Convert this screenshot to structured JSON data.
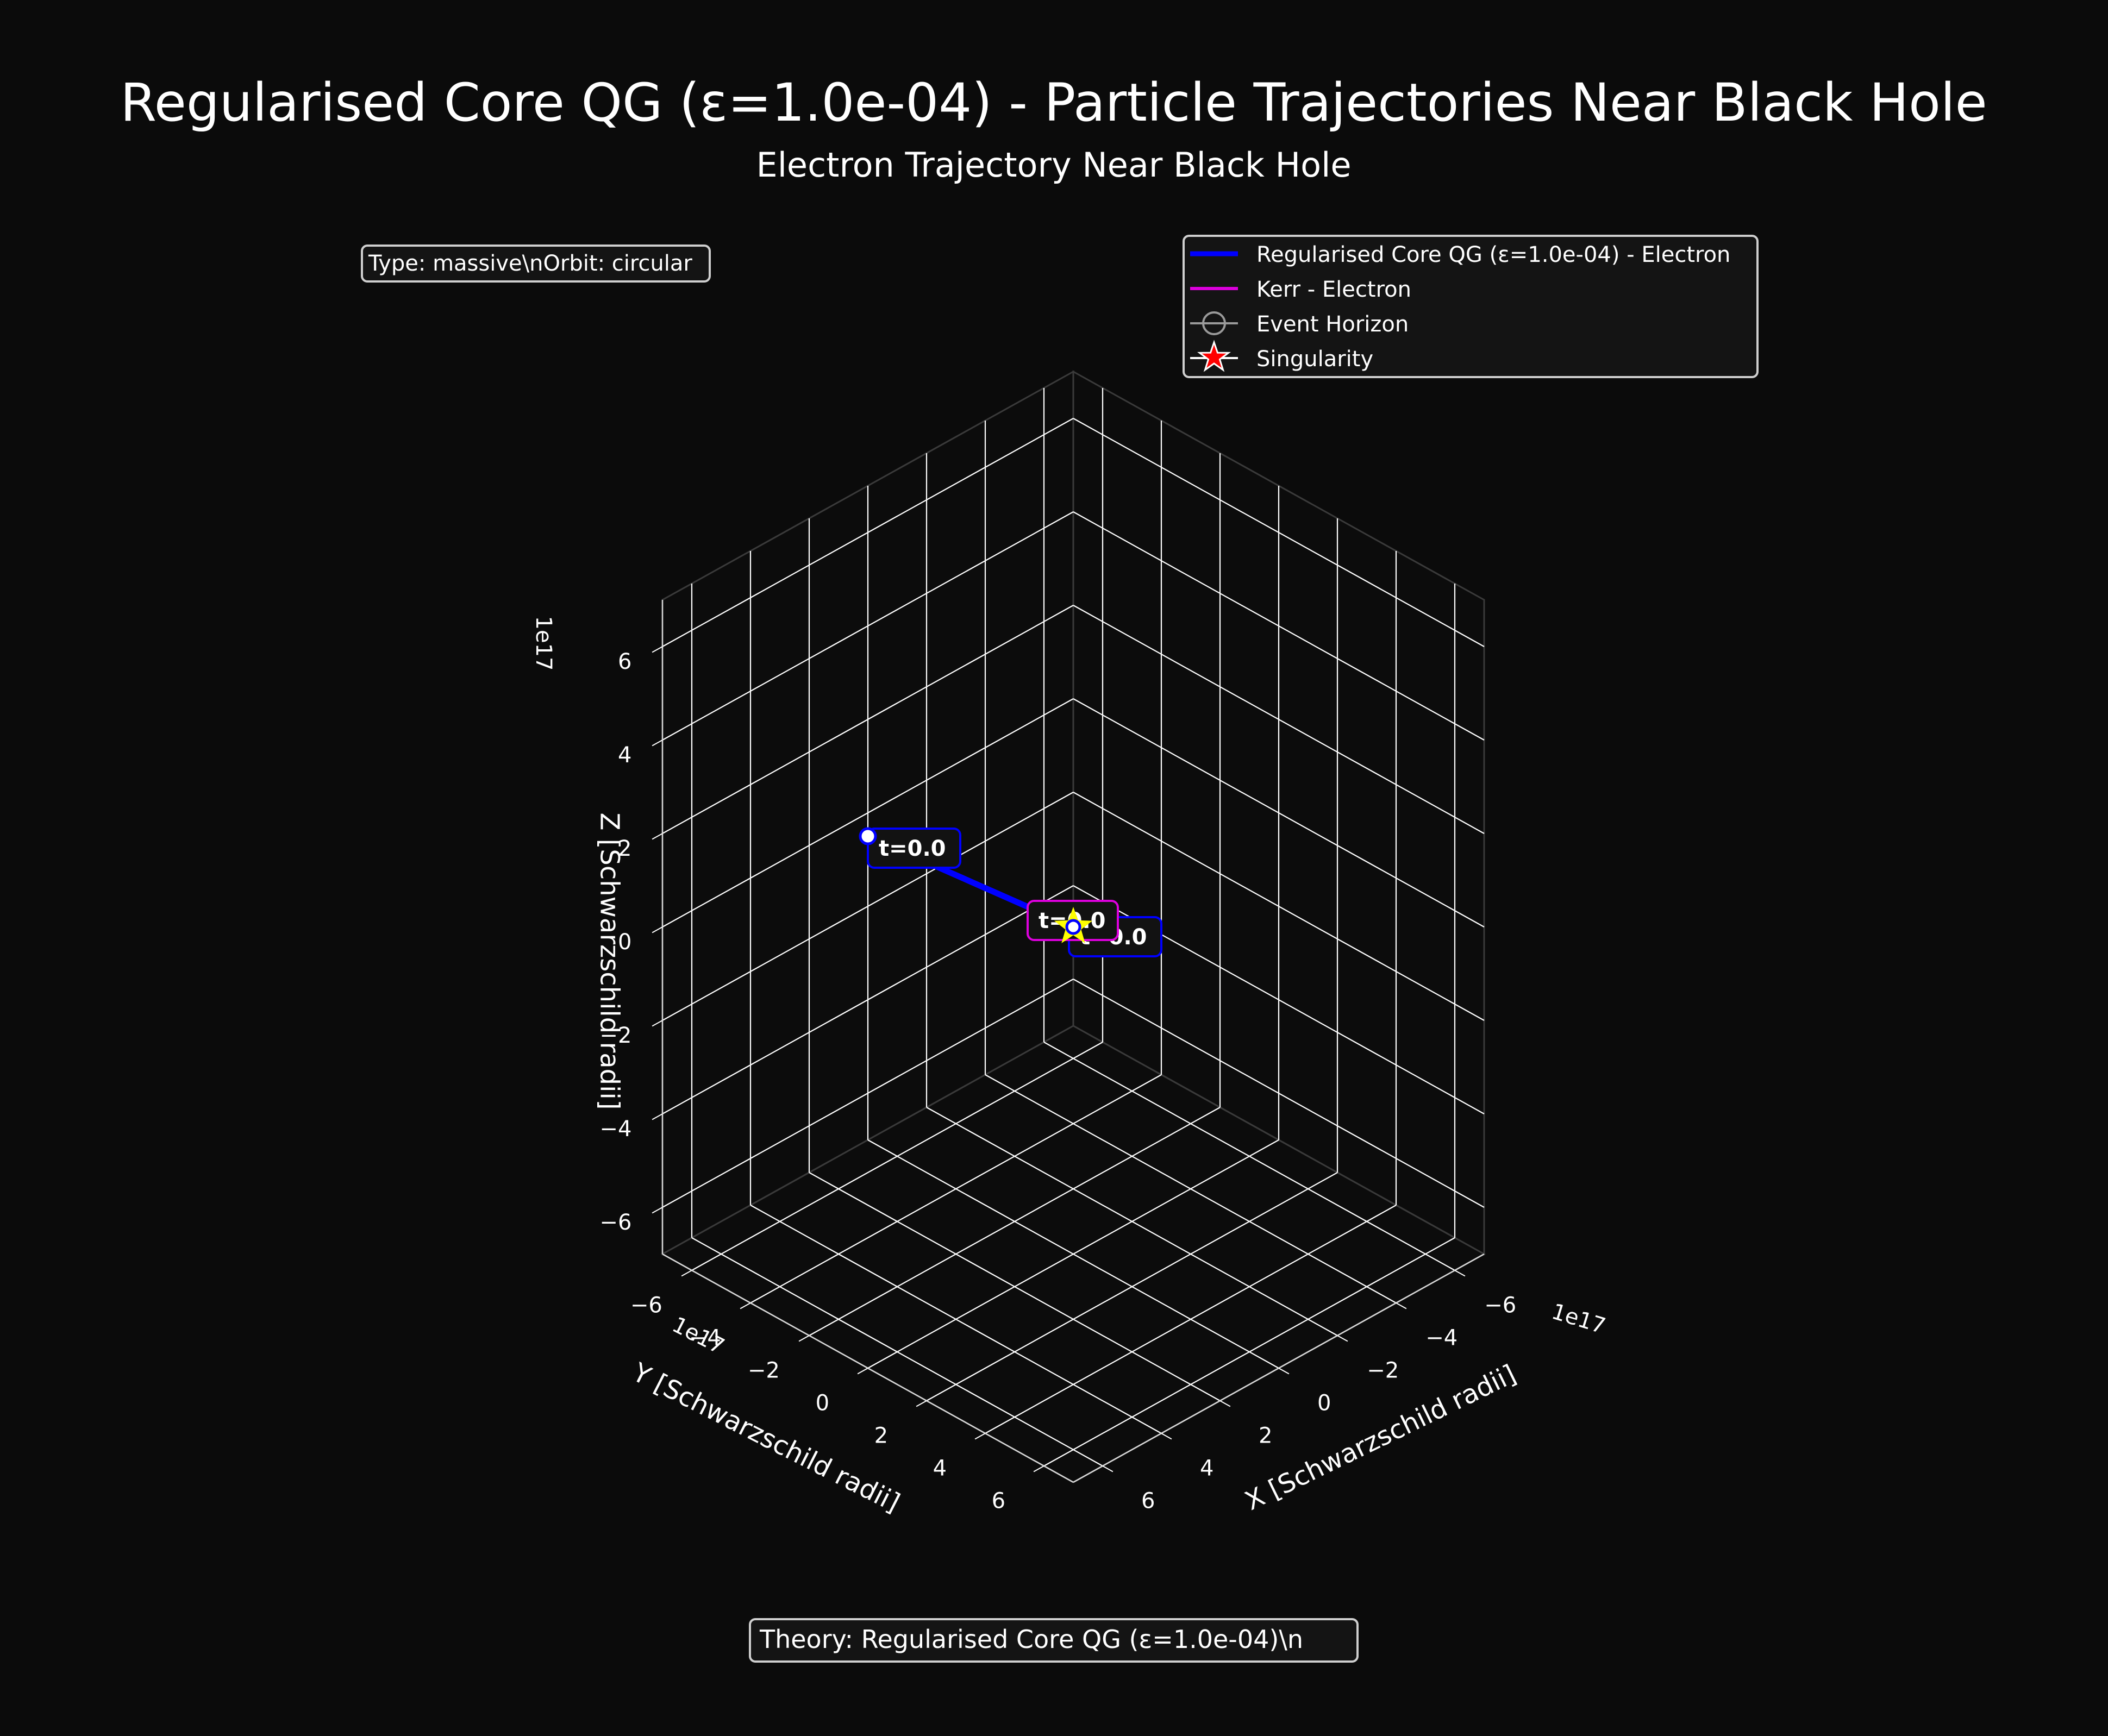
{
  "colors": {
    "background": "#0b0b0b",
    "grid": "#ffffff",
    "pane_edge": "#3a3a3a",
    "text": "#ffffff",
    "qg_series": "#0000ff",
    "kerr_series": "#dd00dd",
    "horizon": "#9a9a9a",
    "singularity_fill": "#ff0000",
    "singularity_stroke": "#ffffff",
    "marker_face": "#ffffff",
    "label_box": "#121212",
    "legend_box": "#141414",
    "yellow_star": "#ffff00"
  },
  "chart_data": {
    "type": "scatter3d",
    "title": "Regularised Core QG (ε=1.0e-04) - Particle Trajectories Near Black Hole",
    "subtitle": "Electron Trajectory Near Black Hole",
    "info_box": "Type: massive\\nOrbit: circular",
    "footer_box": "Theory: Regularised Core QG (ε=1.0e-04)\\n",
    "xlabel": "X [Schwarzschild radii]",
    "ylabel": "Y [Schwarzschild radii]",
    "zlabel": "Z [Schwarzschild radii]",
    "axis_multiplier": "1e17",
    "xlim": [
      -7,
      7
    ],
    "ylim": [
      -7,
      7
    ],
    "zlim": [
      -7,
      7
    ],
    "x_ticks": [
      -6,
      -4,
      -2,
      0,
      2,
      4,
      6
    ],
    "y_ticks": [
      -6,
      -4,
      -2,
      0,
      2,
      4,
      6
    ],
    "z_ticks": [
      -6,
      -4,
      -2,
      0,
      2,
      4,
      6
    ],
    "x_tick_labels": [
      "−6",
      "−4",
      "−2",
      "0",
      "2",
      "4",
      "6"
    ],
    "y_tick_labels": [
      "−6",
      "−4",
      "−2",
      "0",
      "2",
      "4",
      "6"
    ],
    "z_tick_labels": [
      "−6",
      "−4",
      "−2",
      "0",
      "2",
      "4",
      "6"
    ],
    "legend": {
      "placement": "top-right",
      "entries": [
        {
          "label": "Regularised Core QG (ε=1.0e-04) - Electron",
          "kind": "line",
          "color": "#0000ff"
        },
        {
          "label": "Kerr - Electron",
          "kind": "line",
          "color": "#dd00dd"
        },
        {
          "label": "Event Horizon",
          "kind": "circle",
          "color": "#9a9a9a"
        },
        {
          "label": "Singularity",
          "kind": "star",
          "color": "#ff0000"
        }
      ]
    },
    "series": [
      {
        "name": "Regularised Core QG (ε=1.0e-04) - Electron",
        "color": "#0000ff",
        "points": [
          {
            "x": 0.0,
            "y": -7.0,
            "z": -0.5
          },
          {
            "x": 0.0,
            "y": 0.0,
            "z": 0.0
          }
        ],
        "start_label": "t=0.0",
        "end_label": "t=0.0"
      },
      {
        "name": "Kerr - Electron",
        "color": "#dd00dd",
        "points": [
          {
            "x": 0.0,
            "y": 0.0,
            "z": 0.0
          }
        ],
        "start_label": "t=0.0"
      }
    ],
    "singularity": {
      "x": 0,
      "y": 0,
      "z": 0
    },
    "grid": true
  }
}
